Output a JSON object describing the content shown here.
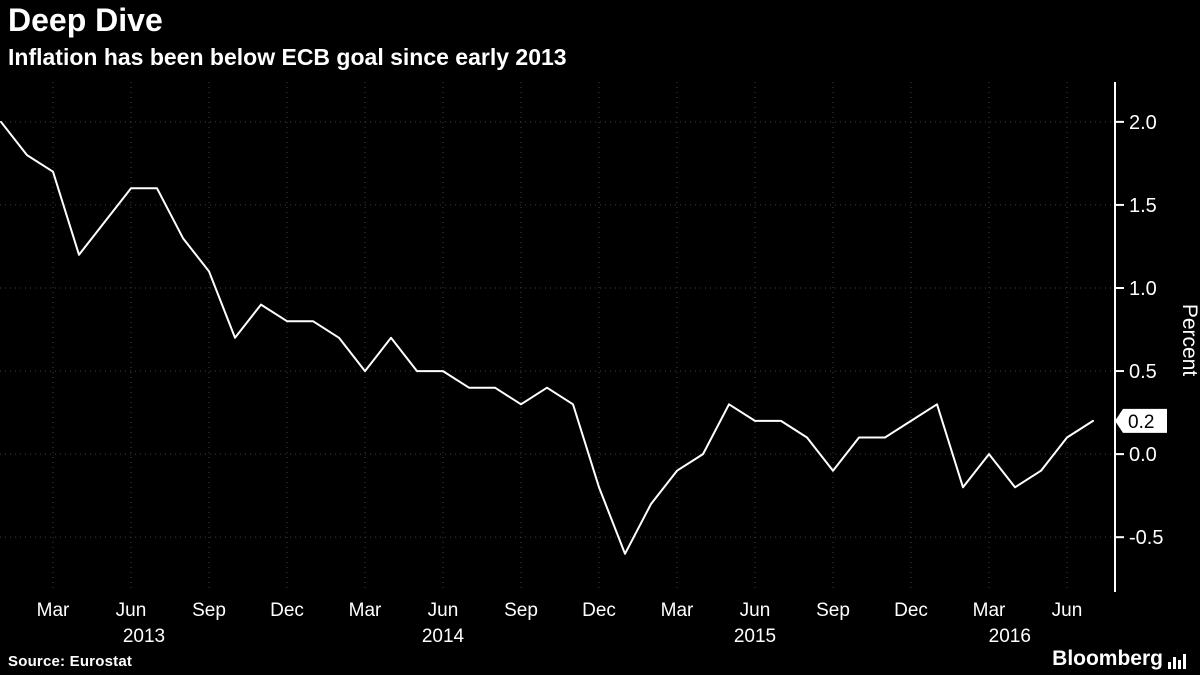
{
  "header": {
    "title": "Deep Dive",
    "subtitle": "Inflation has been below ECB goal since early 2013"
  },
  "chart_data": {
    "type": "line",
    "title": "Deep Dive",
    "subtitle": "Inflation has been below ECB goal since early 2013",
    "ylabel": "Percent",
    "ylim": [
      -0.83,
      2.24
    ],
    "grid": "dotted",
    "legend": "none",
    "line_color": "#ffffff",
    "grid_color": "#3f3f3f",
    "background": "#000000",
    "x": [
      "Jan 2013",
      "Feb 2013",
      "Mar 2013",
      "Apr 2013",
      "May 2013",
      "Jun 2013",
      "Jul 2013",
      "Aug 2013",
      "Sep 2013",
      "Oct 2013",
      "Nov 2013",
      "Dec 2013",
      "Jan 2014",
      "Feb 2014",
      "Mar 2014",
      "Apr 2014",
      "May 2014",
      "Jun 2014",
      "Jul 2014",
      "Aug 2014",
      "Sep 2014",
      "Oct 2014",
      "Nov 2014",
      "Dec 2014",
      "Jan 2015",
      "Feb 2015",
      "Mar 2015",
      "Apr 2015",
      "May 2015",
      "Jun 2015",
      "Jul 2015",
      "Aug 2015",
      "Sep 2015",
      "Oct 2015",
      "Nov 2015",
      "Dec 2015",
      "Jan 2016",
      "Feb 2016",
      "Mar 2016",
      "Apr 2016",
      "May 2016",
      "Jun 2016",
      "Jul 2016"
    ],
    "values": [
      2.0,
      1.8,
      1.7,
      1.2,
      1.4,
      1.6,
      1.6,
      1.3,
      1.1,
      0.7,
      0.9,
      0.8,
      0.8,
      0.7,
      0.5,
      0.7,
      0.5,
      0.5,
      0.4,
      0.4,
      0.3,
      0.4,
      0.3,
      -0.2,
      -0.6,
      -0.3,
      -0.1,
      0.0,
      0.3,
      0.2,
      0.2,
      0.1,
      -0.1,
      0.1,
      0.1,
      0.2,
      0.3,
      -0.2,
      0.0,
      -0.2,
      -0.1,
      0.1,
      0.2
    ],
    "y_ticks": [
      {
        "label": "2.0",
        "value": 2.0
      },
      {
        "label": "1.5",
        "value": 1.5
      },
      {
        "label": "1.0",
        "value": 1.0
      },
      {
        "label": "0.5",
        "value": 0.5
      },
      {
        "label": "0.0",
        "value": 0.0
      },
      {
        "label": "-0.5",
        "value": -0.5
      }
    ],
    "x_tick_months": [
      "Mar",
      "Jun",
      "Sep",
      "Dec"
    ],
    "year_ticks": [
      {
        "label": "2013",
        "month_index": 5.5
      },
      {
        "label": "2014",
        "month_index": 17
      },
      {
        "label": "2015",
        "month_index": 29
      },
      {
        "label": "2016",
        "month_index": 38.8
      }
    ],
    "last_value_label": "0.2"
  },
  "footer": {
    "source": "Source: Eurostat",
    "logo": "Bloomberg"
  }
}
